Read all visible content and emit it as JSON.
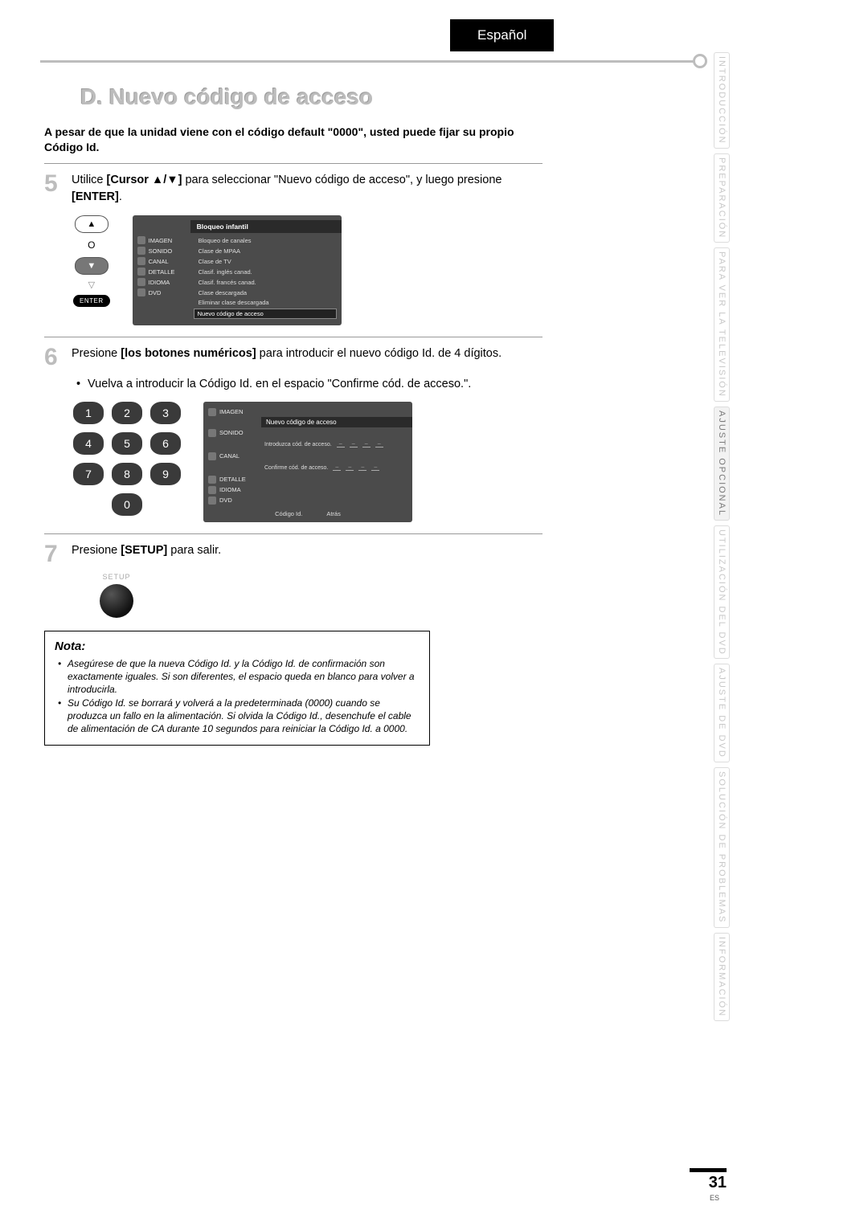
{
  "language_tab": "Español",
  "section_title": "D. Nuevo código de acceso",
  "intro": "A pesar de que la unidad viene con el código default \"0000\", usted puede fijar su propio Código Id.",
  "step5": {
    "num": "5",
    "text_a": "Utilice ",
    "bold_a": "[Cursor ▲/▼]",
    "text_b": " para seleccionar \"Nuevo código de acceso\", y luego presione ",
    "bold_b": "[ENTER]",
    "text_c": "."
  },
  "cursor_pad": {
    "o": "O",
    "enter": "ENTER"
  },
  "menu1": {
    "left": [
      "IMAGEN",
      "SONIDO",
      "CANAL",
      "DETALLE",
      "IDIOMA",
      "DVD"
    ],
    "head": "Bloqueo infantil",
    "items": [
      "Bloqueo de canales",
      "Clase de MPAA",
      "Clase de TV",
      "Clasif. inglés canad.",
      "Clasif. francés canad.",
      "Clase descargada",
      "Eliminar clase descargada"
    ],
    "selected": "Nuevo código de acceso"
  },
  "step6": {
    "num": "6",
    "text_a": "Presione ",
    "bold_a": "[los botones numéricos]",
    "text_b": " para introducir el nuevo código Id. de 4 dígitos.",
    "bullet": "Vuelva a introducir la Código Id. en el espacio \"Confirme cód. de acceso.\"."
  },
  "keypad": [
    "1",
    "2",
    "3",
    "4",
    "5",
    "6",
    "7",
    "8",
    "9",
    "0"
  ],
  "menu2": {
    "head": "Nuevo código de acceso",
    "row1": "Introduzca cód. de acceso.",
    "row2": "Confirme cód. de acceso.",
    "footer_left": "Código Id.",
    "footer_right": "Atrás"
  },
  "step7": {
    "num": "7",
    "text_a": "Presione ",
    "bold_a": "[SETUP]",
    "text_b": " para salir."
  },
  "setup_label": "SETUP",
  "nota": {
    "title": "Nota:",
    "items": [
      "Asegúrese de que la nueva Código Id. y la Código Id. de confirmación son exactamente iguales. Si son diferentes, el espacio queda en blanco para volver a introducirla.",
      "Su Código Id. se borrará y volverá a la predeterminada (0000) cuando se produzca un fallo en la alimentación. Si olvida la Código Id., desenchufe el cable de alimentación de CA durante 10 segundos para reiniciar la Código Id. a 0000."
    ]
  },
  "side_tabs": [
    "INTRODUCCIÓN",
    "PREPARACIÓN",
    "PARA VER LA TELEVISIÓN",
    "AJUSTE OPCIONAL",
    "UTILIZACIÓN DEL DVD",
    "AJUSTE DE DVD",
    "SOLUCIÓN DE PROBLEMAS",
    "INFORMACIÓN"
  ],
  "side_active_index": 3,
  "page_number": "31",
  "es": "ES",
  "colors": {
    "title_shadow": "#bcbcbc",
    "stepnum": "#bdbdbd",
    "menu_bg": "#4b4b4b",
    "key_bg": "#3a3a3a"
  }
}
